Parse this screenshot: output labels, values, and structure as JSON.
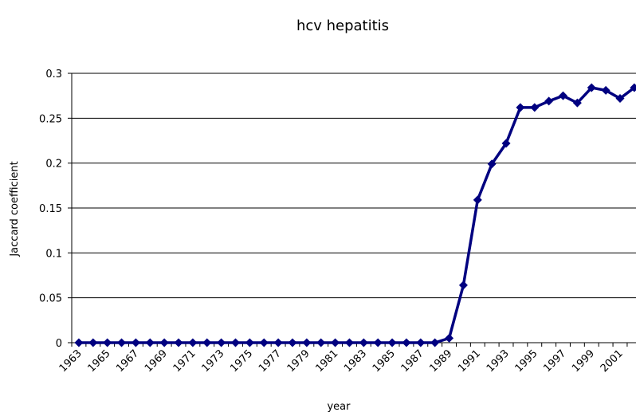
{
  "chart_data": {
    "type": "line",
    "title": "hcv hepatitis",
    "x_label": "year",
    "y_label": "Jaccard coefficient",
    "categories": [
      "1963",
      null,
      "1965",
      null,
      "1967",
      null,
      "1969",
      null,
      "1971",
      null,
      "1973",
      null,
      "1975",
      null,
      "1977",
      null,
      "1979",
      null,
      "1981",
      null,
      "1983",
      null,
      "1985",
      null,
      "1987",
      null,
      "1989",
      null,
      "1991",
      null,
      "1993",
      null,
      "1995",
      null,
      "1997",
      null,
      "1999",
      null,
      "2001",
      null
    ],
    "series": [
      {
        "name": "hcv hepatitis",
        "color": "#000080",
        "values": [
          0,
          0,
          0,
          0,
          0,
          0,
          0,
          0,
          0,
          0,
          0,
          0,
          0,
          0,
          0,
          0,
          0,
          0,
          0,
          0,
          0,
          0,
          0,
          0,
          0,
          0,
          0.005,
          0.064,
          0.159,
          0.199,
          0.222,
          0.262,
          0.262,
          0.269,
          0.275,
          0.267,
          0.284,
          0.281,
          0.272,
          0.284
        ]
      }
    ],
    "ylim": [
      0,
      0.3
    ],
    "yticks": [
      0,
      0.05,
      0.1,
      0.15,
      0.2,
      0.25,
      0.3
    ],
    "grid": true
  }
}
